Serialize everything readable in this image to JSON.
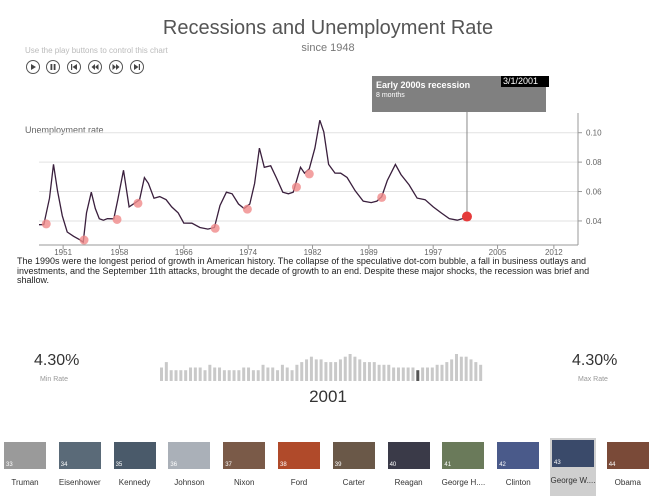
{
  "header": {
    "title": "Recessions and Unemployment Rate",
    "subtitle": "since 1948",
    "hint": "Use the play buttons to control this chart"
  },
  "controls": [
    {
      "name": "play-button",
      "icon": "play-icon"
    },
    {
      "name": "pause-button",
      "icon": "pause-icon"
    },
    {
      "name": "skip-to-start-button",
      "icon": "skip-back-icon"
    },
    {
      "name": "previous-button",
      "icon": "rewind-icon"
    },
    {
      "name": "next-button",
      "icon": "fast-forward-icon"
    },
    {
      "name": "skip-to-end-button",
      "icon": "skip-forward-icon"
    }
  ],
  "tooltip": {
    "title": "Early 2000s recession",
    "duration": "8 months",
    "date": "3/1/2001"
  },
  "chart_data": {
    "type": "line",
    "ylabel": "Unemployment rate",
    "x_ticks": [
      "1951",
      "1958",
      "1966",
      "1974",
      "1982",
      "1989",
      "1997",
      "2005",
      "2012"
    ],
    "y_ticks": [
      "0.04",
      "0.06",
      "0.08",
      "0.10"
    ],
    "ylim": [
      0.025,
      0.11
    ],
    "xlim": [
      1948,
      2015
    ],
    "series": [
      {
        "points": [
          [
            1948.0,
            0.037
          ],
          [
            1948.6,
            0.038
          ],
          [
            1949.3,
            0.055
          ],
          [
            1949.8,
            0.079
          ],
          [
            1950.3,
            0.06
          ],
          [
            1950.9,
            0.044
          ],
          [
            1951.5,
            0.032
          ],
          [
            1952.3,
            0.03
          ],
          [
            1953.0,
            0.027
          ],
          [
            1953.5,
            0.026
          ],
          [
            1953.9,
            0.045
          ],
          [
            1954.5,
            0.06
          ],
          [
            1955.0,
            0.048
          ],
          [
            1955.5,
            0.042
          ],
          [
            1956.0,
            0.04
          ],
          [
            1956.5,
            0.042
          ],
          [
            1957.3,
            0.041
          ],
          [
            1957.8,
            0.055
          ],
          [
            1958.5,
            0.074
          ],
          [
            1959.2,
            0.05
          ],
          [
            1960.0,
            0.052
          ],
          [
            1960.5,
            0.055
          ],
          [
            1961.1,
            0.069
          ],
          [
            1961.6,
            0.066
          ],
          [
            1962.3,
            0.055
          ],
          [
            1963.0,
            0.057
          ],
          [
            1963.8,
            0.054
          ],
          [
            1964.5,
            0.05
          ],
          [
            1965.3,
            0.045
          ],
          [
            1966.0,
            0.039
          ],
          [
            1967.0,
            0.038
          ],
          [
            1968.0,
            0.036
          ],
          [
            1969.0,
            0.034
          ],
          [
            1969.8,
            0.036
          ],
          [
            1970.5,
            0.05
          ],
          [
            1971.3,
            0.06
          ],
          [
            1972.0,
            0.058
          ],
          [
            1972.8,
            0.052
          ],
          [
            1973.5,
            0.048
          ],
          [
            1974.2,
            0.052
          ],
          [
            1974.8,
            0.065
          ],
          [
            1975.4,
            0.09
          ],
          [
            1976.0,
            0.076
          ],
          [
            1976.8,
            0.078
          ],
          [
            1977.5,
            0.069
          ],
          [
            1978.3,
            0.06
          ],
          [
            1979.0,
            0.058
          ],
          [
            1979.6,
            0.06
          ],
          [
            1980.5,
            0.076
          ],
          [
            1981.0,
            0.073
          ],
          [
            1981.6,
            0.075
          ],
          [
            1982.3,
            0.09
          ],
          [
            1982.9,
            0.108
          ],
          [
            1983.4,
            0.101
          ],
          [
            1984.0,
            0.078
          ],
          [
            1984.8,
            0.073
          ],
          [
            1985.5,
            0.072
          ],
          [
            1986.3,
            0.07
          ],
          [
            1987.3,
            0.06
          ],
          [
            1988.3,
            0.054
          ],
          [
            1989.3,
            0.052
          ],
          [
            1990.0,
            0.054
          ],
          [
            1990.6,
            0.056
          ],
          [
            1991.3,
            0.068
          ],
          [
            1992.3,
            0.078
          ],
          [
            1993.0,
            0.072
          ],
          [
            1994.0,
            0.064
          ],
          [
            1995.0,
            0.056
          ],
          [
            1996.0,
            0.054
          ],
          [
            1997.0,
            0.05
          ],
          [
            1998.0,
            0.045
          ],
          [
            1999.0,
            0.042
          ],
          [
            2000.0,
            0.04
          ],
          [
            2001.2,
            0.043
          ]
        ]
      }
    ],
    "recession_markers": [
      [
        1948.9,
        0.038
      ],
      [
        1953.6,
        0.027
      ],
      [
        1957.7,
        0.041
      ],
      [
        1960.3,
        0.052
      ],
      [
        1969.9,
        0.035
      ],
      [
        1973.9,
        0.048
      ],
      [
        1980.0,
        0.063
      ],
      [
        1981.6,
        0.072
      ],
      [
        1990.6,
        0.056
      ]
    ],
    "current_marker": [
      2001.2,
      0.043
    ],
    "colors": {
      "line": "#3a1f3d",
      "marker": "#f08a8a",
      "current": "#e53b3b",
      "guide": "#888888"
    }
  },
  "narrative": "The 1990s were the longest period of growth in American history. The collapse of the speculative dot-com bubble, a fall in business outlays and investments, and the September 11th attacks, brought the decade of growth to an end. Despite these major shocks, the recession was brief and shallow.",
  "stats": {
    "min_value": "4.30%",
    "min_label": "Min Rate",
    "max_value": "4.30%",
    "max_label": "Max Rate",
    "year": "2001"
  },
  "histogram": {
    "values": [
      5,
      7,
      4,
      4,
      4,
      4,
      5,
      5,
      5,
      4,
      6,
      5,
      5,
      4,
      4,
      4,
      4,
      5,
      5,
      4,
      4,
      6,
      5,
      5,
      4,
      6,
      5,
      4,
      6,
      7,
      8,
      9,
      8,
      8,
      7,
      7,
      7,
      8,
      9,
      10,
      9,
      8,
      7,
      7,
      7,
      6,
      6,
      6,
      5,
      5,
      5,
      5,
      5,
      4,
      5,
      5,
      5,
      6,
      6,
      7,
      8,
      10,
      9,
      9,
      8,
      7,
      6
    ],
    "highlight_index": 53,
    "colors": {
      "bar": "#c9c9c9",
      "highlight": "#555555"
    }
  },
  "presidents": [
    {
      "name": "Truman",
      "badge": "33",
      "photo": "#9a9a9a"
    },
    {
      "name": "Eisenhower",
      "badge": "34",
      "photo": "#5a6a78"
    },
    {
      "name": "Kennedy",
      "badge": "35",
      "photo": "#4a5a6a"
    },
    {
      "name": "Johnson",
      "badge": "36",
      "photo": "#aab0b8"
    },
    {
      "name": "Nixon",
      "badge": "37",
      "photo": "#7a5a48"
    },
    {
      "name": "Ford",
      "badge": "38",
      "photo": "#b04a2a"
    },
    {
      "name": "Carter",
      "badge": "39",
      "photo": "#6a5848"
    },
    {
      "name": "Reagan",
      "badge": "40",
      "photo": "#3a3a48"
    },
    {
      "name": "George H....",
      "badge": "41",
      "photo": "#6a7a5a"
    },
    {
      "name": "Clinton",
      "badge": "42",
      "photo": "#4a5a8a"
    },
    {
      "name": "George W....",
      "badge": "43",
      "photo": "#3a4a6a",
      "selected": true
    },
    {
      "name": "Obama",
      "badge": "44",
      "photo": "#7a4a38"
    }
  ]
}
